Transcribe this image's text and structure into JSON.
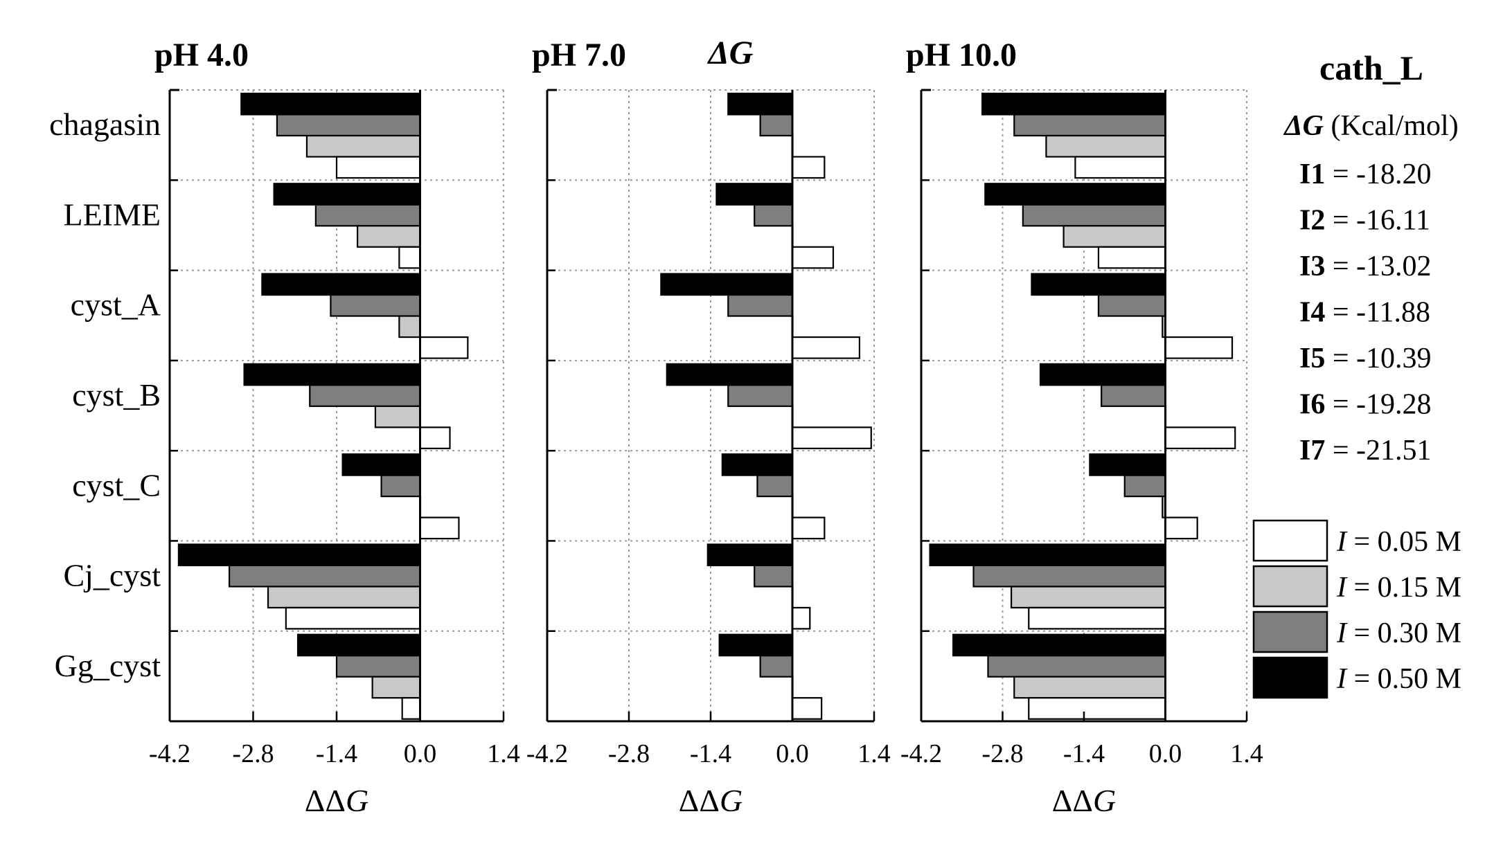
{
  "chart_data": {
    "type": "bar",
    "orientation": "horizontal",
    "categories": [
      "chagasin",
      "LEIME",
      "cyst_A",
      "cyst_B",
      "cyst_C",
      "Cj_cyst",
      "Gg_cyst"
    ],
    "series_names": [
      "I = 0.50 M",
      "I = 0.30 M",
      "I = 0.15 M",
      "I = 0.05 M"
    ],
    "xlabel": "ΔΔG",
    "xlim": [
      -4.2,
      1.4
    ],
    "xticks": [
      -4.2,
      -2.8,
      -1.4,
      0.0,
      1.4
    ],
    "xtick_labels": [
      "-4.2",
      "-2.8",
      "-1.4",
      "0.0",
      "1.4"
    ],
    "grid": true,
    "panels": [
      {
        "title": "pH 4.0",
        "values": {
          "chagasin": [
            -3.0,
            -2.4,
            -1.9,
            -1.4
          ],
          "LEIME": [
            -2.45,
            -1.75,
            -1.05,
            -0.35
          ],
          "cyst_A": [
            -2.65,
            -1.5,
            -0.35,
            0.8
          ],
          "cyst_B": [
            -2.95,
            -1.85,
            -0.75,
            0.5
          ],
          "cyst_C": [
            -1.3,
            -0.65,
            0.0,
            0.65
          ],
          "Cj_cyst": [
            -4.05,
            -3.2,
            -2.55,
            -2.25
          ],
          "Gg_cyst": [
            -2.05,
            -1.4,
            -0.8,
            -0.3
          ]
        }
      },
      {
        "title": "pH 7.0",
        "values": {
          "chagasin": [
            -1.1,
            -0.55,
            0.0,
            0.55
          ],
          "LEIME": [
            -1.3,
            -0.65,
            0.0,
            0.7
          ],
          "cyst_A": [
            -2.25,
            -1.1,
            0.0,
            1.15
          ],
          "cyst_B": [
            -2.15,
            -1.1,
            0.0,
            1.35
          ],
          "cyst_C": [
            -1.2,
            -0.6,
            0.0,
            0.55
          ],
          "Cj_cyst": [
            -1.45,
            -0.65,
            0.0,
            0.3
          ],
          "Gg_cyst": [
            -1.25,
            -0.55,
            0.0,
            0.5
          ]
        }
      },
      {
        "title": "pH 10.0",
        "values": {
          "chagasin": [
            -3.15,
            -2.6,
            -2.05,
            -1.55
          ],
          "LEIME": [
            -3.1,
            -2.45,
            -1.75,
            -1.15
          ],
          "cyst_A": [
            -2.3,
            -1.15,
            -0.05,
            1.15
          ],
          "cyst_B": [
            -2.15,
            -1.1,
            0.0,
            1.2
          ],
          "cyst_C": [
            -1.3,
            -0.7,
            -0.05,
            0.55
          ],
          "Cj_cyst": [
            -4.05,
            -3.3,
            -2.65,
            -2.35
          ],
          "Gg_cyst": [
            -3.65,
            -3.05,
            -2.6,
            -2.35
          ]
        }
      }
    ]
  },
  "figure": {
    "delta_g_header": "ΔG",
    "protease": "cath_L",
    "dg_title_symbol": "ΔG",
    "dg_title_unit": " (Kcal/mol)",
    "dg_values": [
      {
        "label": "I1",
        "value": "= -18.20"
      },
      {
        "label": "I2",
        "value": "= -16.11"
      },
      {
        "label": "I3",
        "value": "= -13.02"
      },
      {
        "label": "I4",
        "value": "= -11.88"
      },
      {
        "label": "I5",
        "value": "= -10.39"
      },
      {
        "label": "I6",
        "value": "= -19.28"
      },
      {
        "label": "I7",
        "value": "= -21.51"
      }
    ],
    "legend": [
      {
        "symbol": "I",
        "text": " = 0.05 M",
        "color": "#ffffff"
      },
      {
        "symbol": "I",
        "text": " = 0.15 M",
        "color": "#c8c8c8"
      },
      {
        "symbol": "I",
        "text": " = 0.30 M",
        "color": "#7f7f7f"
      },
      {
        "symbol": "I",
        "text": " = 0.50 M",
        "color": "#000000"
      }
    ],
    "series_colors": [
      "#000000",
      "#7f7f7f",
      "#c8c8c8",
      "#ffffff"
    ]
  }
}
